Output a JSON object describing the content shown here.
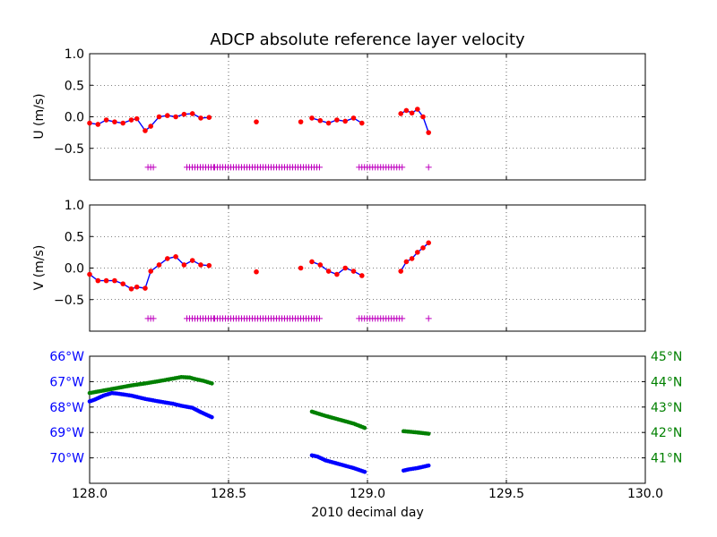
{
  "chart_data": {
    "type": "scatter",
    "title": "ADCP absolute reference layer velocity",
    "xlabel": "2010 decimal day",
    "xlim": [
      128.0,
      130.0
    ],
    "x_ticks": [
      "128.0",
      "128.5",
      "129.0",
      "129.5",
      "130.0"
    ],
    "grid": true,
    "colors": {
      "u_v_points": "#ff0000",
      "u_v_line": "#0000ff",
      "flag_marks": "#bf00bf",
      "lon_series": "#0000ff",
      "lat_series": "#008000"
    },
    "panels": [
      {
        "id": "u",
        "ylabel": "U (m/s)",
        "ylim": [
          -1.0,
          1.0
        ],
        "y_ticks": [
          {
            "value": 1.0,
            "label": "1.0"
          },
          {
            "value": 0.5,
            "label": "0.5"
          },
          {
            "value": 0.0,
            "label": "0.0"
          },
          {
            "value": -0.5,
            "label": "−0.5"
          }
        ],
        "segments": [
          {
            "x": [
              128.0,
              128.03,
              128.06,
              128.09,
              128.12,
              128.15,
              128.17,
              128.2,
              128.22,
              128.25,
              128.28,
              128.31,
              128.34,
              128.37,
              128.4,
              128.43
            ],
            "y": [
              -0.1,
              -0.12,
              -0.05,
              -0.08,
              -0.1,
              -0.05,
              -0.03,
              -0.22,
              -0.15,
              0.0,
              0.02,
              0.0,
              0.04,
              0.05,
              -0.02,
              -0.01
            ]
          },
          {
            "x": [
              128.8,
              128.83,
              128.86,
              128.89,
              128.92,
              128.95,
              128.98
            ],
            "y": [
              -0.02,
              -0.06,
              -0.1,
              -0.05,
              -0.07,
              -0.02,
              -0.1
            ]
          },
          {
            "x": [
              129.12,
              129.14,
              129.16,
              129.18,
              129.2,
              129.22
            ],
            "y": [
              0.05,
              0.1,
              0.06,
              0.12,
              0.0,
              -0.25
            ]
          }
        ],
        "isolated_points": [
          {
            "x": 128.6,
            "y": -0.08
          },
          {
            "x": 128.76,
            "y": -0.08
          }
        ],
        "flag_level": -0.8,
        "flag_ranges": [
          [
            128.21,
            128.23
          ],
          [
            128.35,
            128.45
          ],
          [
            128.45,
            128.83
          ],
          [
            128.97,
            129.13
          ]
        ],
        "flag_singles": [
          129.22
        ]
      },
      {
        "id": "v",
        "ylabel": "V (m/s)",
        "ylim": [
          -1.0,
          1.0
        ],
        "y_ticks": [
          {
            "value": 1.0,
            "label": "1.0"
          },
          {
            "value": 0.5,
            "label": "0.5"
          },
          {
            "value": 0.0,
            "label": "0.0"
          },
          {
            "value": -0.5,
            "label": "−0.5"
          }
        ],
        "segments": [
          {
            "x": [
              128.0,
              128.03,
              128.06,
              128.09,
              128.12,
              128.15,
              128.17,
              128.2,
              128.22,
              128.25,
              128.28,
              128.31,
              128.34,
              128.37,
              128.4,
              128.43
            ],
            "y": [
              -0.1,
              -0.2,
              -0.2,
              -0.2,
              -0.25,
              -0.33,
              -0.3,
              -0.32,
              -0.05,
              0.05,
              0.15,
              0.18,
              0.05,
              0.12,
              0.05,
              0.04
            ]
          },
          {
            "x": [
              128.8,
              128.83,
              128.86,
              128.89,
              128.92,
              128.95,
              128.98
            ],
            "y": [
              0.1,
              0.05,
              -0.05,
              -0.1,
              0.0,
              -0.05,
              -0.12
            ]
          },
          {
            "x": [
              129.12,
              129.14,
              129.16,
              129.18,
              129.2,
              129.22
            ],
            "y": [
              -0.05,
              0.1,
              0.15,
              0.25,
              0.32,
              0.4
            ]
          }
        ],
        "isolated_points": [
          {
            "x": 128.6,
            "y": -0.06
          },
          {
            "x": 128.76,
            "y": 0.0
          }
        ],
        "flag_level": -0.8,
        "flag_ranges": [
          [
            128.21,
            128.23
          ],
          [
            128.35,
            128.45
          ],
          [
            128.45,
            128.83
          ],
          [
            128.97,
            129.13
          ]
        ],
        "flag_singles": [
          129.22
        ]
      }
    ],
    "position_panel": {
      "left_axis": {
        "ylim": [
          -71.0,
          -66.0
        ],
        "tick_labels": [
          {
            "value": -66,
            "label": "66°W"
          },
          {
            "value": -67,
            "label": "67°W"
          },
          {
            "value": -68,
            "label": "68°W"
          },
          {
            "value": -69,
            "label": "69°W"
          },
          {
            "value": -70,
            "label": "70°W"
          }
        ]
      },
      "right_axis": {
        "ylim": [
          40.0,
          45.0
        ],
        "tick_labels": [
          {
            "value": 45,
            "label": "45°N"
          },
          {
            "value": 44,
            "label": "44°N"
          },
          {
            "value": 43,
            "label": "43°N"
          },
          {
            "value": 42,
            "label": "42°N"
          },
          {
            "value": 41,
            "label": "41°N"
          }
        ]
      },
      "longitude": [
        {
          "x": [
            128.0,
            128.02,
            128.05,
            128.08,
            128.1,
            128.15,
            128.2,
            128.25,
            128.3,
            128.33,
            128.37,
            128.4,
            128.44
          ],
          "y": [
            -67.78,
            -67.7,
            -67.55,
            -67.45,
            -67.47,
            -67.55,
            -67.68,
            -67.78,
            -67.87,
            -67.95,
            -68.03,
            -68.2,
            -68.4
          ]
        },
        {
          "x": [
            128.8,
            128.82,
            128.85,
            128.9,
            128.95,
            128.99
          ],
          "y": [
            -69.9,
            -69.95,
            -70.1,
            -70.25,
            -70.4,
            -70.55
          ]
        },
        {
          "x": [
            129.13,
            129.15,
            129.18,
            129.22
          ],
          "y": [
            -70.5,
            -70.45,
            -70.4,
            -70.3
          ]
        }
      ],
      "latitude": [
        {
          "x": [
            128.0,
            128.05,
            128.1,
            128.15,
            128.2,
            128.25,
            128.3,
            128.33,
            128.36,
            128.38,
            128.41,
            128.44
          ],
          "y": [
            43.55,
            43.65,
            43.75,
            43.85,
            43.93,
            44.02,
            44.12,
            44.18,
            44.16,
            44.1,
            44.03,
            43.93
          ]
        },
        {
          "x": [
            128.8,
            128.82,
            128.85,
            128.9,
            128.95,
            128.99
          ],
          "y": [
            42.82,
            42.75,
            42.65,
            42.5,
            42.35,
            42.18
          ]
        },
        {
          "x": [
            129.13,
            129.15,
            129.18,
            129.22
          ],
          "y": [
            42.05,
            42.03,
            42.0,
            41.95
          ]
        }
      ]
    }
  }
}
